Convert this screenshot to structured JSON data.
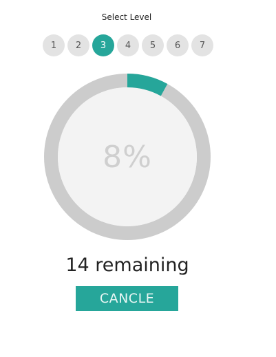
{
  "header": {
    "select_label": "Select Level"
  },
  "levels": [
    {
      "label": "1",
      "active": false
    },
    {
      "label": "2",
      "active": false
    },
    {
      "label": "3",
      "active": true
    },
    {
      "label": "4",
      "active": false
    },
    {
      "label": "5",
      "active": false
    },
    {
      "label": "6",
      "active": false
    },
    {
      "label": "7",
      "active": false
    }
  ],
  "progress": {
    "percent_label": "8%",
    "fraction": 0.08,
    "track_color": "#cccccc",
    "fill_color": "#26a69a",
    "inner_color": "#f3f3f3"
  },
  "status": {
    "remaining_text": "14 remaining"
  },
  "actions": {
    "cancel_label": "CANCLE"
  },
  "colors": {
    "accent": "#26a69a",
    "level_inactive": "#e3e3e3"
  }
}
